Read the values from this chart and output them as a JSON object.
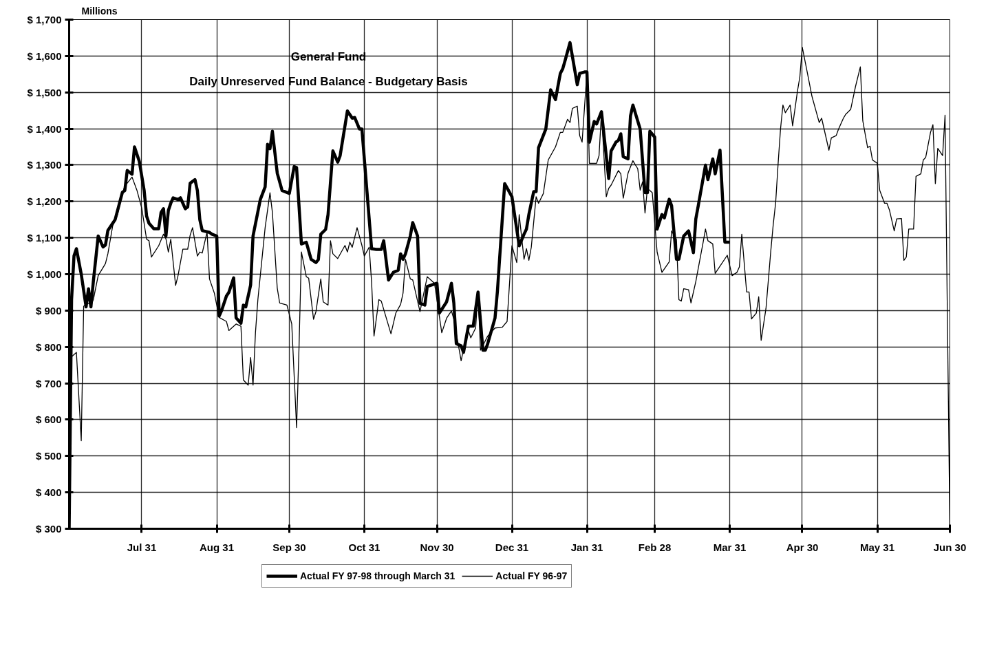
{
  "chart_data": {
    "type": "line",
    "title": "General Fund",
    "subtitle": "Daily Unreserved Fund Balance - Budgetary Basis",
    "ylabel": "Millions",
    "xlim": [
      "1997-07-01",
      "1998-06-30"
    ],
    "xticks": [
      {
        "value": "1997-07-31",
        "label": "Jul 31"
      },
      {
        "value": "1997-08-31",
        "label": "Aug 31"
      },
      {
        "value": "1997-09-30",
        "label": "Sep 30"
      },
      {
        "value": "1997-10-31",
        "label": "Oct 31"
      },
      {
        "value": "1997-11-30",
        "label": "Nov 30"
      },
      {
        "value": "1997-12-31",
        "label": "Dec 31"
      },
      {
        "value": "1998-01-31",
        "label": "Jan 31"
      },
      {
        "value": "1998-02-28",
        "label": "Feb 28"
      },
      {
        "value": "1998-03-31",
        "label": "Mar 31"
      },
      {
        "value": "1998-04-30",
        "label": "Apr 30"
      },
      {
        "value": "1998-05-31",
        "label": "May 31"
      },
      {
        "value": "1998-06-30",
        "label": "Jun 30"
      }
    ],
    "ylim": [
      300,
      1700
    ],
    "yticks": [
      {
        "value": 300,
        "label": "$ 300"
      },
      {
        "value": 400,
        "label": "$ 400"
      },
      {
        "value": 500,
        "label": "$ 500"
      },
      {
        "value": 600,
        "label": "$ 600"
      },
      {
        "value": 700,
        "label": "$ 700"
      },
      {
        "value": 800,
        "label": "$ 800"
      },
      {
        "value": 900,
        "label": "$ 900"
      },
      {
        "value": 1000,
        "label": "$ 1,000"
      },
      {
        "value": 1100,
        "label": "$ 1,100"
      },
      {
        "value": 1200,
        "label": "$ 1,200"
      },
      {
        "value": 1300,
        "label": "$ 1,300"
      },
      {
        "value": 1400,
        "label": "$ 1,400"
      },
      {
        "value": 1500,
        "label": "$ 1,500"
      },
      {
        "value": 1600,
        "label": "$ 1,600"
      },
      {
        "value": 1700,
        "label": "$ 1,700"
      }
    ],
    "grid": true,
    "legend": "bottom",
    "line_style": "solid",
    "series": [
      {
        "name": "Actual FY 97-98 through March 31",
        "color": "#000000",
        "x": [
          "1997-07-01",
          "1997-07-02",
          "1997-07-03",
          "1997-07-04",
          "1997-07-06",
          "1997-07-08",
          "1997-07-09",
          "1997-07-10",
          "1997-07-11",
          "1997-07-13",
          "1997-07-15",
          "1997-07-16",
          "1997-07-17",
          "1997-07-20",
          "1997-07-21",
          "1997-07-22",
          "1997-07-23",
          "1997-07-24",
          "1997-07-25",
          "1997-07-26",
          "1997-07-27",
          "1997-07-28",
          "1997-07-30",
          "1997-08-01",
          "1997-08-02",
          "1997-08-03",
          "1997-08-05",
          "1997-08-07",
          "1997-08-08",
          "1997-08-09",
          "1997-08-10",
          "1997-08-11",
          "1997-08-12",
          "1997-08-13",
          "1997-08-15",
          "1997-08-16",
          "1997-08-18",
          "1997-08-19",
          "1997-08-20",
          "1997-08-22",
          "1997-08-23",
          "1997-08-24",
          "1997-08-25",
          "1997-08-28",
          "1997-08-29",
          "1997-08-31",
          "1997-09-01",
          "1997-09-02",
          "1997-09-04",
          "1997-09-05",
          "1997-09-07",
          "1997-09-08",
          "1997-09-10",
          "1997-09-11",
          "1997-09-12",
          "1997-09-14",
          "1997-09-15",
          "1997-09-18",
          "1997-09-20",
          "1997-09-21",
          "1997-09-22",
          "1997-09-23",
          "1997-09-25",
          "1997-09-27",
          "1997-09-30",
          "1997-10-02",
          "1997-10-03",
          "1997-10-05",
          "1997-10-07",
          "1997-10-09",
          "1997-10-11",
          "1997-10-12",
          "1997-10-13",
          "1997-10-15",
          "1997-10-16",
          "1997-10-18",
          "1997-10-20",
          "1997-10-21",
          "1997-10-24",
          "1997-10-26",
          "1997-10-27",
          "1997-10-29",
          "1997-10-30",
          "1997-11-03",
          "1997-11-05",
          "1997-11-07",
          "1997-11-08",
          "1997-11-10",
          "1997-11-12",
          "1997-11-14",
          "1997-11-15",
          "1997-11-16",
          "1997-11-17",
          "1997-11-19",
          "1997-11-20",
          "1997-11-22",
          "1997-11-23",
          "1997-11-25",
          "1997-11-26",
          "1997-11-30",
          "1997-12-01",
          "1997-12-04",
          "1997-12-06",
          "1997-12-07",
          "1997-12-08",
          "1997-12-10",
          "1997-12-11",
          "1997-12-13",
          "1997-12-15",
          "1997-12-17",
          "1997-12-19",
          "1997-12-20",
          "1997-12-21",
          "1997-12-24",
          "1997-12-25",
          "1997-12-28",
          "1997-12-31",
          "1998-01-03",
          "1998-01-05",
          "1998-01-06",
          "1998-01-07",
          "1998-01-09",
          "1998-01-10",
          "1998-01-11",
          "1998-01-14",
          "1998-01-16",
          "1998-01-18",
          "1998-01-20",
          "1998-01-21",
          "1998-01-22",
          "1998-01-24",
          "1998-01-27",
          "1998-01-28",
          "1998-01-30",
          "1998-01-31",
          "1998-02-01",
          "1998-02-03",
          "1998-02-04",
          "1998-02-06",
          "1998-02-09",
          "1998-02-10",
          "1998-02-12",
          "1998-02-13",
          "1998-02-14",
          "1998-02-15",
          "1998-02-17",
          "1998-02-18",
          "1998-02-19",
          "1998-02-22",
          "1998-02-24",
          "1998-02-25",
          "1998-02-26",
          "1998-02-28",
          "1998-03-01",
          "1998-03-03",
          "1998-03-04",
          "1998-03-06",
          "1998-03-07",
          "1998-03-09",
          "1998-03-10",
          "1998-03-12",
          "1998-03-14",
          "1998-03-16",
          "1998-03-17",
          "1998-03-18",
          "1998-03-21",
          "1998-03-22",
          "1998-03-24",
          "1998-03-25",
          "1998-03-27",
          "1998-03-29",
          "1998-03-31"
        ],
        "values": [
          300,
          930,
          1050,
          1070,
          1000,
          910,
          960,
          910,
          980,
          1105,
          1075,
          1080,
          1120,
          1150,
          1175,
          1200,
          1225,
          1230,
          1285,
          1280,
          1275,
          1350,
          1310,
          1230,
          1160,
          1140,
          1125,
          1125,
          1170,
          1180,
          1105,
          1175,
          1195,
          1210,
          1205,
          1210,
          1180,
          1185,
          1250,
          1260,
          1230,
          1150,
          1120,
          1115,
          1110,
          1105,
          885,
          900,
          940,
          950,
          990,
          880,
          865,
          915,
          910,
          970,
          1105,
          1205,
          1240,
          1357,
          1345,
          1393,
          1278,
          1230,
          1222,
          1296,
          1293,
          1083,
          1088,
          1041,
          1032,
          1040,
          1110,
          1123,
          1164,
          1339,
          1308,
          1326,
          1449,
          1429,
          1431,
          1399,
          1399,
          1070,
          1068,
          1068,
          1092,
          984,
          1005,
          1011,
          1056,
          1041,
          1056,
          1105,
          1142,
          1105,
          920,
          915,
          966,
          975,
          893,
          924,
          975,
          920,
          809,
          803,
          785,
          857,
          857,
          951,
          791,
          791,
          809,
          879,
          953,
          1249,
          1213,
          1078,
          1110,
          1124,
          1164,
          1227,
          1227,
          1348,
          1399,
          1507,
          1480,
          1552,
          1565,
          1588,
          1637,
          1521,
          1552,
          1556,
          1556,
          1363,
          1420,
          1413,
          1447,
          1263,
          1339,
          1363,
          1368,
          1386,
          1323,
          1317,
          1435,
          1465,
          1399,
          1224,
          1224,
          1393,
          1377,
          1124,
          1164,
          1155,
          1206,
          1188,
          1041,
          1041,
          1105,
          1119,
          1059,
          1152,
          1188,
          1300,
          1260,
          1317,
          1276,
          1341,
          1088,
          1088
        ]
      },
      {
        "name": "Actual FY 96-97",
        "color": "#000000",
        "x": [
          "1997-07-02",
          "1997-07-04",
          "1997-07-06",
          "1997-07-07",
          "1997-07-09",
          "1997-07-10",
          "1997-07-11",
          "1997-07-13",
          "1997-07-16",
          "1997-07-17",
          "1997-07-19",
          "1997-07-21",
          "1997-07-23",
          "1997-07-24",
          "1997-07-27",
          "1997-07-29",
          "1997-07-31",
          "1997-08-02",
          "1997-08-03",
          "1997-08-04",
          "1997-08-07",
          "1997-08-09",
          "1997-08-10",
          "1997-08-11",
          "1997-08-12",
          "1997-08-14",
          "1997-08-15",
          "1997-08-17",
          "1997-08-19",
          "1997-08-20",
          "1997-08-21",
          "1997-08-23",
          "1997-08-24",
          "1997-08-25",
          "1997-08-27",
          "1997-08-28",
          "1997-08-30",
          "1997-09-01",
          "1997-09-04",
          "1997-09-05",
          "1997-09-08",
          "1997-09-10",
          "1997-09-11",
          "1997-09-13",
          "1997-09-14",
          "1997-09-15",
          "1997-09-16",
          "1997-09-17",
          "1997-09-20",
          "1997-09-22",
          "1997-09-23",
          "1997-09-25",
          "1997-09-26",
          "1997-09-29",
          "1997-10-01",
          "1997-10-03",
          "1997-10-04",
          "1997-10-05",
          "1997-10-07",
          "1997-10-08",
          "1997-10-10",
          "1997-10-11",
          "1997-10-13",
          "1997-10-14",
          "1997-10-16",
          "1997-10-17",
          "1997-10-18",
          "1997-10-20",
          "1997-10-23",
          "1997-10-24",
          "1997-10-25",
          "1997-10-26",
          "1997-10-28",
          "1997-10-30",
          "1997-10-31",
          "1997-11-02",
          "1997-11-03",
          "1997-11-04",
          "1997-11-06",
          "1997-11-07",
          "1997-11-11",
          "1997-11-13",
          "1997-11-15",
          "1997-11-16",
          "1997-11-17",
          "1997-11-19",
          "1997-11-20",
          "1997-11-23",
          "1997-11-26",
          "1997-11-29",
          "1997-12-02",
          "1997-12-04",
          "1997-12-06",
          "1997-12-07",
          "1997-12-10",
          "1997-12-11",
          "1997-12-13",
          "1997-12-14",
          "1997-12-16",
          "1997-12-17",
          "1997-12-18",
          "1997-12-21",
          "1997-12-24",
          "1997-12-27",
          "1997-12-29",
          "1997-12-31",
          "1998-01-02",
          "1998-01-03",
          "1998-01-05",
          "1998-01-06",
          "1998-01-07",
          "1998-01-08",
          "1998-01-10",
          "1998-01-11",
          "1998-01-13",
          "1998-01-15",
          "1998-01-18",
          "1998-01-20",
          "1998-01-21",
          "1998-01-23",
          "1998-01-24",
          "1998-01-25",
          "1998-01-27",
          "1998-01-28",
          "1998-01-29",
          "1998-01-31",
          "1998-02-01",
          "1998-02-04",
          "1998-02-05",
          "1998-02-06",
          "1998-02-08",
          "1998-02-09",
          "1998-02-10",
          "1998-02-13",
          "1998-02-14",
          "1998-02-15",
          "1998-02-17",
          "1998-02-19",
          "1998-02-21",
          "1998-02-22",
          "1998-02-23",
          "1998-02-24",
          "1998-02-25",
          "1998-02-27",
          "1998-03-01",
          "1998-03-03",
          "1998-03-06",
          "1998-03-07",
          "1998-03-09",
          "1998-03-10",
          "1998-03-11",
          "1998-03-12",
          "1998-03-14",
          "1998-03-15",
          "1998-03-17",
          "1998-03-18",
          "1998-03-20",
          "1998-03-21",
          "1998-03-22",
          "1998-03-24",
          "1998-03-25",
          "1998-03-30",
          "1998-04-01",
          "1998-04-03",
          "1998-04-04",
          "1998-04-05",
          "1998-04-07",
          "1998-04-08",
          "1998-04-09",
          "1998-04-11",
          "1998-04-12",
          "1998-04-13",
          "1998-04-15",
          "1998-04-17",
          "1998-04-18",
          "1998-04-19",
          "1998-04-20",
          "1998-04-21",
          "1998-04-22",
          "1998-04-23",
          "1998-04-25",
          "1998-04-26",
          "1998-04-28",
          "1998-04-29",
          "1998-04-30",
          "1998-05-02",
          "1998-05-04",
          "1998-05-07",
          "1998-05-08",
          "1998-05-11",
          "1998-05-12",
          "1998-05-14",
          "1998-05-15",
          "1998-05-17",
          "1998-05-18",
          "1998-05-20",
          "1998-05-22",
          "1998-05-24",
          "1998-05-25",
          "1998-05-27",
          "1998-05-28",
          "1998-05-29",
          "1998-05-31",
          "1998-06-01",
          "1998-06-03",
          "1998-06-04",
          "1998-06-05",
          "1998-06-07",
          "1998-06-08",
          "1998-06-10",
          "1998-06-11",
          "1998-06-12",
          "1998-06-13",
          "1998-06-15",
          "1998-06-16",
          "1998-06-18",
          "1998-06-19",
          "1998-06-20",
          "1998-06-22",
          "1998-06-23",
          "1998-06-24",
          "1998-06-25",
          "1998-06-27",
          "1998-06-28",
          "1998-06-30"
        ],
        "values": [
          773,
          785,
          542,
          912,
          920,
          915,
          930,
          996,
          1029,
          1056,
          1133,
          1164,
          1222,
          1242,
          1267,
          1231,
          1182,
          1096,
          1092,
          1047,
          1078,
          1110,
          1097,
          1061,
          1096,
          969,
          996,
          1069,
          1069,
          1107,
          1128,
          1050,
          1061,
          1058,
          1116,
          987,
          948,
          881,
          870,
          845,
          863,
          857,
          709,
          695,
          771,
          695,
          839,
          930,
          1128,
          1224,
          1170,
          962,
          921,
          915,
          863,
          578,
          798,
          1061,
          993,
          989,
          876,
          897,
          987,
          924,
          915,
          1092,
          1056,
          1043,
          1079,
          1061,
          1088,
          1074,
          1128,
          1079,
          1050,
          1074,
          978,
          830,
          930,
          926,
          836,
          893,
          917,
          948,
          1041,
          987,
          984,
          897,
          993,
          975,
          839,
          879,
          899,
          876,
          762,
          794,
          845,
          825,
          852,
          951,
          791,
          830,
          852,
          854,
          870,
          1078,
          1032,
          1164,
          1041,
          1070,
          1038,
          1074,
          1213,
          1195,
          1222,
          1314,
          1350,
          1390,
          1390,
          1426,
          1417,
          1456,
          1462,
          1381,
          1363,
          1556,
          1305,
          1305,
          1326,
          1444,
          1213,
          1236,
          1245,
          1285,
          1276,
          1209,
          1278,
          1312,
          1290,
          1231,
          1254,
          1168,
          1236,
          1224,
          1061,
          1005,
          1034,
          1119,
          1096,
          930,
          926,
          960,
          957,
          921,
          980,
          1016,
          1087,
          1124,
          1092,
          1083,
          1002,
          1052,
          996,
          1005,
          1020,
          1110,
          951,
          951,
          877,
          893,
          938,
          818,
          906,
          1065,
          1137,
          1197,
          1303,
          1399,
          1465,
          1444,
          1465,
          1408,
          1503,
          1543,
          1624,
          1557,
          1489,
          1417,
          1429,
          1341,
          1375,
          1381,
          1399,
          1429,
          1440,
          1453,
          1516,
          1570,
          1422,
          1348,
          1352,
          1314,
          1305,
          1231,
          1195,
          1195,
          1177,
          1119,
          1152,
          1153,
          1038,
          1047,
          1124,
          1124,
          1269,
          1276,
          1314,
          1321,
          1390,
          1411,
          1249,
          1346,
          1326,
          1437,
          300
        ]
      }
    ]
  }
}
